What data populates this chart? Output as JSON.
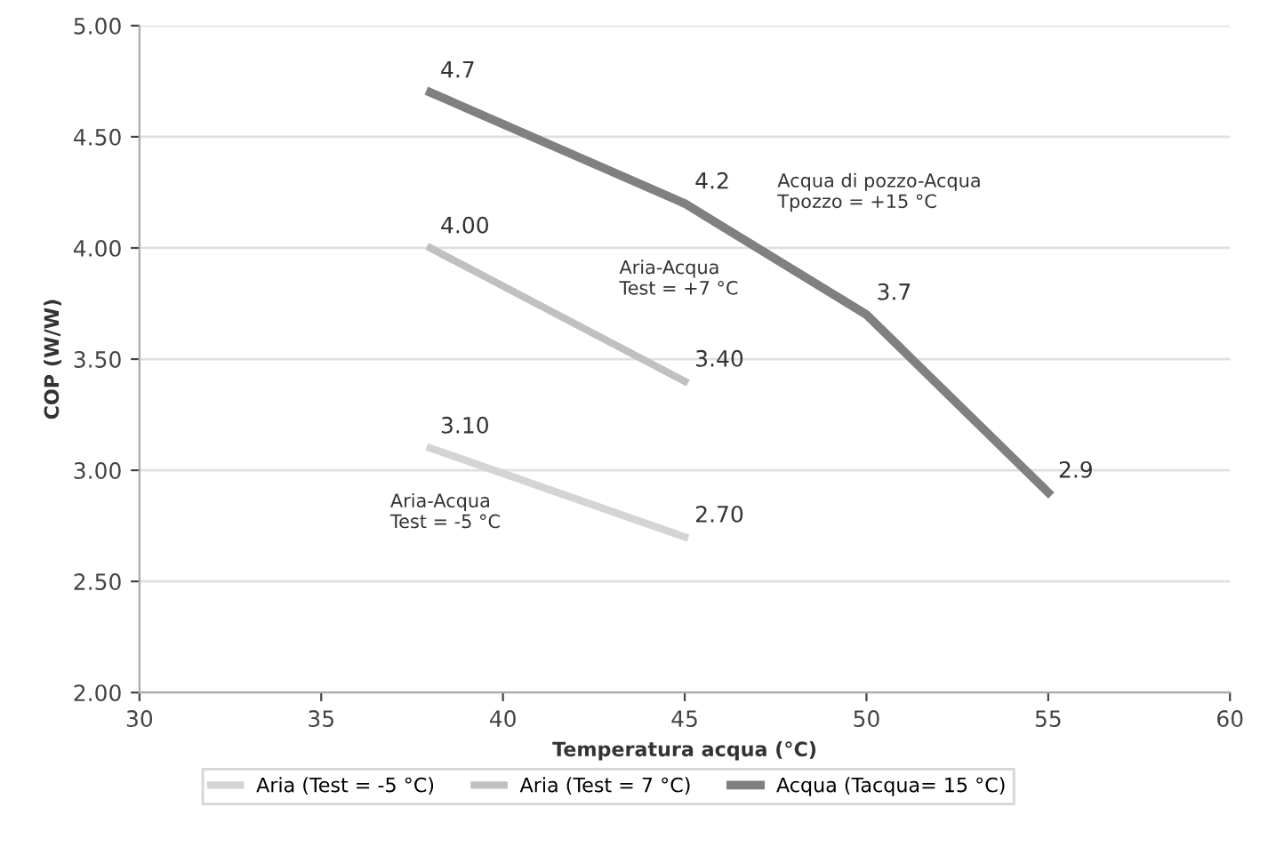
{
  "chart_data": {
    "type": "line",
    "xlabel": "Temperatura acqua (°C)",
    "ylabel": "COP (W/W)",
    "xlim": [
      30,
      60
    ],
    "xticks": [
      30,
      35,
      40,
      45,
      50,
      55,
      60
    ],
    "ylim": [
      2,
      5
    ],
    "yticks": [
      {
        "value": 2,
        "label": "2.00"
      },
      {
        "value": 2.5,
        "label": "2.50"
      },
      {
        "value": 3,
        "label": "3.00"
      },
      {
        "value": 3.5,
        "label": "3.50"
      },
      {
        "value": 4,
        "label": "4.00"
      },
      {
        "value": 4.5,
        "label": "4.50"
      },
      {
        "value": 5,
        "label": "5.00"
      }
    ],
    "grid": "y",
    "legend": "bottom",
    "marker": "none",
    "line_style": "solid",
    "series": [
      {
        "name": "Aria (Test = -5 °C)",
        "color": "#d4d4d4",
        "x": [
          38,
          45
        ],
        "values": [
          3.1,
          2.7
        ],
        "value_labels": [
          "3.10",
          "2.70"
        ]
      },
      {
        "name": "Aria (Test = 7 °C)",
        "color": "#c0c0c0",
        "x": [
          38,
          45
        ],
        "values": [
          4.0,
          3.4
        ],
        "value_labels": [
          "4.00",
          "3.40"
        ]
      },
      {
        "name": "Acqua (Tacqua= 15 °C)",
        "color": "#808080",
        "x": [
          38,
          45,
          50,
          55
        ],
        "values": [
          4.7,
          4.2,
          3.7,
          2.9
        ],
        "value_labels": [
          "4.7",
          "4.2",
          "3.7",
          "2.9"
        ]
      }
    ],
    "annotations": [
      "Aria-Acqua\nTest = -5 °C",
      "Aria-Acqua\nTest = +7 °C",
      "Acqua di pozzo-Acqua\nTpozzo = +15 °C"
    ]
  }
}
